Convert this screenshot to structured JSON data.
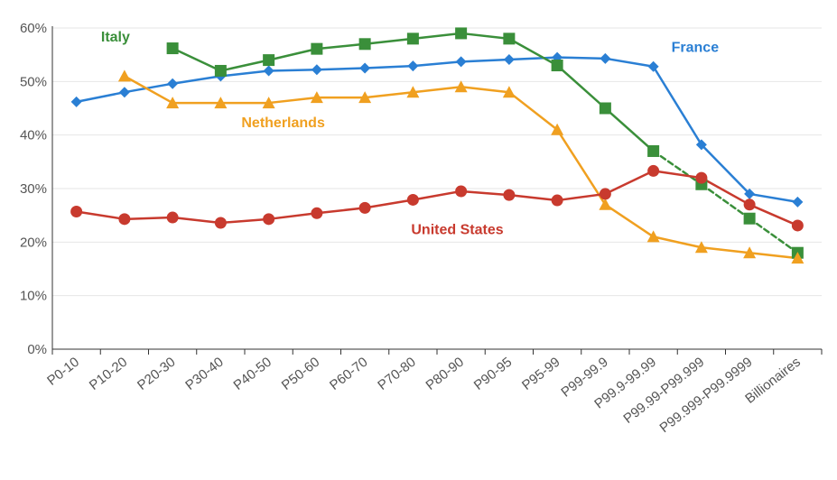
{
  "chart_data": {
    "type": "line",
    "title": "",
    "xlabel": "",
    "ylabel": "",
    "ylim": [
      0,
      60
    ],
    "y_ticks": [
      "0%",
      "10%",
      "20%",
      "30%",
      "40%",
      "50%",
      "60%"
    ],
    "grid": true,
    "categories": [
      "P0-10",
      "P10-20",
      "P20-30",
      "P30-40",
      "P40-50",
      "P50-60",
      "P60-70",
      "P70-80",
      "P80-90",
      "P90-95",
      "P95-99",
      "P99-99.9",
      "P99.9-99.99",
      "P99.99-P99.999",
      "P99.999-P99.9999",
      "Billionaires"
    ],
    "series": [
      {
        "name": "France",
        "color": "#2a7fd4",
        "marker": "diamond",
        "values": [
          46.2,
          48.0,
          49.6,
          51.0,
          52.0,
          52.2,
          52.5,
          52.9,
          53.7,
          54.1,
          54.5,
          54.3,
          52.8,
          38.2,
          29.0,
          27.5
        ],
        "dashed_from_index": null
      },
      {
        "name": "Italy",
        "color": "#3a8f3a",
        "marker": "square",
        "values": [
          null,
          null,
          56.2,
          52.0,
          54.0,
          56.1,
          57.0,
          58.0,
          59.0,
          58.0,
          53.0,
          45.0,
          37.0,
          30.8,
          24.4,
          18.0
        ],
        "dashed_from_index": 12
      },
      {
        "name": "Netherlands",
        "color": "#f0a020",
        "marker": "triangle",
        "values": [
          null,
          51.0,
          46.0,
          46.0,
          46.0,
          47.0,
          47.0,
          48.0,
          49.0,
          48.0,
          41.0,
          27.0,
          21.0,
          19.0,
          18.0,
          17.0
        ],
        "dashed_from_index": null
      },
      {
        "name": "United States",
        "color": "#c83a2e",
        "marker": "circle",
        "values": [
          25.7,
          24.3,
          24.6,
          23.6,
          24.3,
          25.4,
          26.4,
          27.9,
          29.5,
          28.8,
          27.8,
          29.0,
          33.3,
          32.0,
          27.0,
          23.1
        ],
        "dashed_from_index": null
      }
    ],
    "annotations": [
      {
        "text": "France",
        "series": "France",
        "anchor_category": "P99.9-99.99",
        "anchor_value": 55.5
      },
      {
        "text": "Italy",
        "series": "Italy",
        "anchor_category": "P10-20",
        "anchor_value": 57.5
      },
      {
        "text": "Netherlands",
        "series": "Netherlands",
        "anchor_category": "P30-40",
        "anchor_value": 41.5
      },
      {
        "text": "United States",
        "series": "United States",
        "anchor_category": "P70-80",
        "anchor_value": 21.5
      }
    ]
  }
}
